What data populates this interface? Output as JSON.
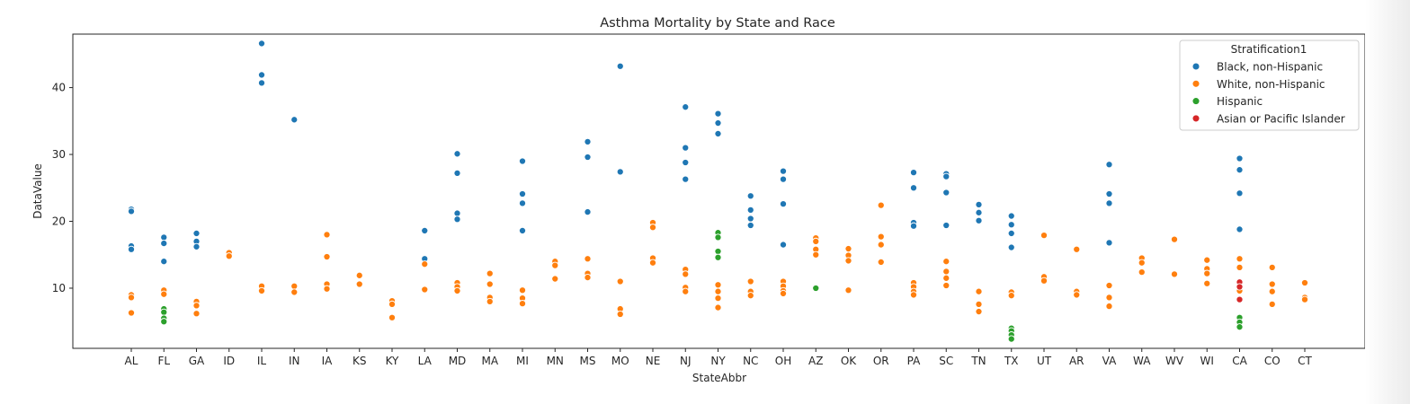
{
  "chart_data": {
    "type": "scatter",
    "title": "Asthma Mortality by State and Race",
    "xlabel": "StateAbbr",
    "ylabel": "DataValue",
    "ylim": [
      1,
      48
    ],
    "yticks": [
      10,
      20,
      30,
      40
    ],
    "grid": false,
    "legend_placement": "top-right",
    "legend_title": "Stratification1",
    "categories": [
      "AL",
      "FL",
      "GA",
      "ID",
      "IL",
      "IN",
      "IA",
      "KS",
      "KY",
      "LA",
      "MD",
      "MA",
      "MI",
      "MN",
      "MS",
      "MO",
      "NE",
      "NJ",
      "NY",
      "NC",
      "OH",
      "AZ",
      "OK",
      "OR",
      "PA",
      "SC",
      "TN",
      "TX",
      "UT",
      "AR",
      "VA",
      "WA",
      "WV",
      "WI",
      "CA",
      "CO",
      "CT"
    ],
    "series": [
      {
        "name": "Black, non-Hispanic",
        "color": "#1f77b4",
        "points": [
          [
            "AL",
            21.8
          ],
          [
            "AL",
            21.5
          ],
          [
            "AL",
            16.3
          ],
          [
            "AL",
            15.8
          ],
          [
            "FL",
            17.6
          ],
          [
            "FL",
            16.7
          ],
          [
            "FL",
            14.0
          ],
          [
            "GA",
            18.2
          ],
          [
            "GA",
            17.0
          ],
          [
            "GA",
            16.2
          ],
          [
            "IL",
            46.6
          ],
          [
            "IL",
            41.9
          ],
          [
            "IL",
            40.7
          ],
          [
            "IN",
            35.2
          ],
          [
            "LA",
            18.6
          ],
          [
            "LA",
            14.4
          ],
          [
            "MD",
            30.1
          ],
          [
            "MD",
            27.2
          ],
          [
            "MD",
            21.2
          ],
          [
            "MD",
            20.3
          ],
          [
            "MI",
            29.0
          ],
          [
            "MI",
            24.1
          ],
          [
            "MI",
            22.7
          ],
          [
            "MI",
            18.6
          ],
          [
            "MS",
            31.9
          ],
          [
            "MS",
            29.6
          ],
          [
            "MS",
            21.4
          ],
          [
            "MO",
            43.2
          ],
          [
            "MO",
            27.4
          ],
          [
            "NJ",
            37.1
          ],
          [
            "NJ",
            31.0
          ],
          [
            "NJ",
            28.8
          ],
          [
            "NJ",
            26.3
          ],
          [
            "NY",
            36.1
          ],
          [
            "NY",
            34.7
          ],
          [
            "NY",
            33.1
          ],
          [
            "NC",
            23.8
          ],
          [
            "NC",
            21.7
          ],
          [
            "NC",
            20.4
          ],
          [
            "NC",
            19.4
          ],
          [
            "OH",
            27.5
          ],
          [
            "OH",
            26.3
          ],
          [
            "OH",
            22.6
          ],
          [
            "OH",
            16.5
          ],
          [
            "PA",
            27.3
          ],
          [
            "PA",
            25.0
          ],
          [
            "PA",
            19.8
          ],
          [
            "PA",
            19.3
          ],
          [
            "SC",
            27.1
          ],
          [
            "SC",
            26.7
          ],
          [
            "SC",
            24.3
          ],
          [
            "SC",
            19.4
          ],
          [
            "TN",
            22.5
          ],
          [
            "TN",
            21.3
          ],
          [
            "TN",
            20.1
          ],
          [
            "TX",
            20.8
          ],
          [
            "TX",
            19.5
          ],
          [
            "TX",
            18.2
          ],
          [
            "TX",
            16.1
          ],
          [
            "VA",
            28.5
          ],
          [
            "VA",
            24.1
          ],
          [
            "VA",
            22.7
          ],
          [
            "VA",
            16.8
          ],
          [
            "CA",
            29.4
          ],
          [
            "CA",
            27.7
          ],
          [
            "CA",
            24.2
          ],
          [
            "CA",
            18.8
          ]
        ]
      },
      {
        "name": "White, non-Hispanic",
        "color": "#ff7f0e",
        "points": [
          [
            "AL",
            9.0
          ],
          [
            "AL",
            8.6
          ],
          [
            "AL",
            6.3
          ],
          [
            "FL",
            9.7
          ],
          [
            "FL",
            9.1
          ],
          [
            "GA",
            8.0
          ],
          [
            "GA",
            7.4
          ],
          [
            "GA",
            6.2
          ],
          [
            "ID",
            15.3
          ],
          [
            "ID",
            14.8
          ],
          [
            "IL",
            10.3
          ],
          [
            "IL",
            9.6
          ],
          [
            "IN",
            10.3
          ],
          [
            "IN",
            9.4
          ],
          [
            "IA",
            18.0
          ],
          [
            "IA",
            14.7
          ],
          [
            "IA",
            10.6
          ],
          [
            "IA",
            9.9
          ],
          [
            "KS",
            11.9
          ],
          [
            "KS",
            10.6
          ],
          [
            "KY",
            8.1
          ],
          [
            "KY",
            7.6
          ],
          [
            "KY",
            5.6
          ],
          [
            "LA",
            13.6
          ],
          [
            "LA",
            9.8
          ],
          [
            "MD",
            10.8
          ],
          [
            "MD",
            10.2
          ],
          [
            "MD",
            9.6
          ],
          [
            "MA",
            12.2
          ],
          [
            "MA",
            10.6
          ],
          [
            "MA",
            8.6
          ],
          [
            "MA",
            8.0
          ],
          [
            "MI",
            9.7
          ],
          [
            "MI",
            8.5
          ],
          [
            "MI",
            7.7
          ],
          [
            "MN",
            14.0
          ],
          [
            "MN",
            13.4
          ],
          [
            "MN",
            11.4
          ],
          [
            "MS",
            14.4
          ],
          [
            "MS",
            12.2
          ],
          [
            "MS",
            11.6
          ],
          [
            "MO",
            11.0
          ],
          [
            "MO",
            6.9
          ],
          [
            "MO",
            6.1
          ],
          [
            "NE",
            19.8
          ],
          [
            "NE",
            19.1
          ],
          [
            "NE",
            14.5
          ],
          [
            "NE",
            13.8
          ],
          [
            "NJ",
            12.8
          ],
          [
            "NJ",
            12.1
          ],
          [
            "NJ",
            10.1
          ],
          [
            "NJ",
            9.5
          ],
          [
            "NY",
            10.5
          ],
          [
            "NY",
            9.5
          ],
          [
            "NY",
            8.5
          ],
          [
            "NY",
            7.1
          ],
          [
            "NC",
            11.0
          ],
          [
            "NC",
            9.5
          ],
          [
            "NC",
            8.9
          ],
          [
            "OH",
            11.0
          ],
          [
            "OH",
            10.3
          ],
          [
            "OH",
            9.6
          ],
          [
            "OH",
            9.2
          ],
          [
            "AZ",
            17.5
          ],
          [
            "AZ",
            17.0
          ],
          [
            "AZ",
            15.8
          ],
          [
            "AZ",
            15.0
          ],
          [
            "OK",
            15.9
          ],
          [
            "OK",
            14.9
          ],
          [
            "OK",
            14.1
          ],
          [
            "OK",
            9.7
          ],
          [
            "OR",
            22.4
          ],
          [
            "OR",
            17.7
          ],
          [
            "OR",
            16.5
          ],
          [
            "OR",
            13.9
          ],
          [
            "PA",
            10.8
          ],
          [
            "PA",
            10.2
          ],
          [
            "PA",
            9.5
          ],
          [
            "PA",
            9.0
          ],
          [
            "SC",
            14.0
          ],
          [
            "SC",
            12.5
          ],
          [
            "SC",
            11.5
          ],
          [
            "SC",
            10.4
          ],
          [
            "TN",
            9.5
          ],
          [
            "TN",
            7.6
          ],
          [
            "TN",
            6.5
          ],
          [
            "TX",
            9.4
          ],
          [
            "TX",
            8.9
          ],
          [
            "UT",
            17.9
          ],
          [
            "UT",
            11.7
          ],
          [
            "UT",
            11.1
          ],
          [
            "AR",
            15.8
          ],
          [
            "AR",
            9.5
          ],
          [
            "AR",
            9.0
          ],
          [
            "VA",
            10.4
          ],
          [
            "VA",
            8.6
          ],
          [
            "VA",
            7.3
          ],
          [
            "WA",
            14.5
          ],
          [
            "WA",
            13.8
          ],
          [
            "WA",
            12.4
          ],
          [
            "WV",
            17.3
          ],
          [
            "WV",
            12.1
          ],
          [
            "WI",
            14.2
          ],
          [
            "WI",
            12.9
          ],
          [
            "WI",
            12.2
          ],
          [
            "WI",
            10.7
          ],
          [
            "CA",
            14.4
          ],
          [
            "CA",
            13.1
          ],
          [
            "CA",
            11.0
          ],
          [
            "CA",
            10.2
          ],
          [
            "CA",
            9.6
          ],
          [
            "CO",
            13.1
          ],
          [
            "CO",
            10.6
          ],
          [
            "CO",
            9.5
          ],
          [
            "CO",
            7.6
          ],
          [
            "CT",
            10.8
          ],
          [
            "CT",
            8.6
          ],
          [
            "CT",
            8.3
          ]
        ]
      },
      {
        "name": "Hispanic",
        "color": "#2ca02c",
        "points": [
          [
            "FL",
            6.9
          ],
          [
            "FL",
            6.4
          ],
          [
            "FL",
            5.5
          ],
          [
            "FL",
            5.0
          ],
          [
            "NY",
            18.3
          ],
          [
            "NY",
            17.6
          ],
          [
            "NY",
            15.5
          ],
          [
            "NY",
            14.6
          ],
          [
            "AZ",
            10.0
          ],
          [
            "TX",
            4.0
          ],
          [
            "TX",
            3.6
          ],
          [
            "TX",
            3.0
          ],
          [
            "TX",
            2.4
          ],
          [
            "CA",
            5.6
          ],
          [
            "CA",
            4.9
          ],
          [
            "CA",
            4.2
          ]
        ]
      },
      {
        "name": "Asian or Pacific Islander",
        "color": "#d62728",
        "points": [
          [
            "CA",
            10.9
          ],
          [
            "CA",
            10.2
          ],
          [
            "CA",
            8.3
          ]
        ]
      }
    ]
  }
}
